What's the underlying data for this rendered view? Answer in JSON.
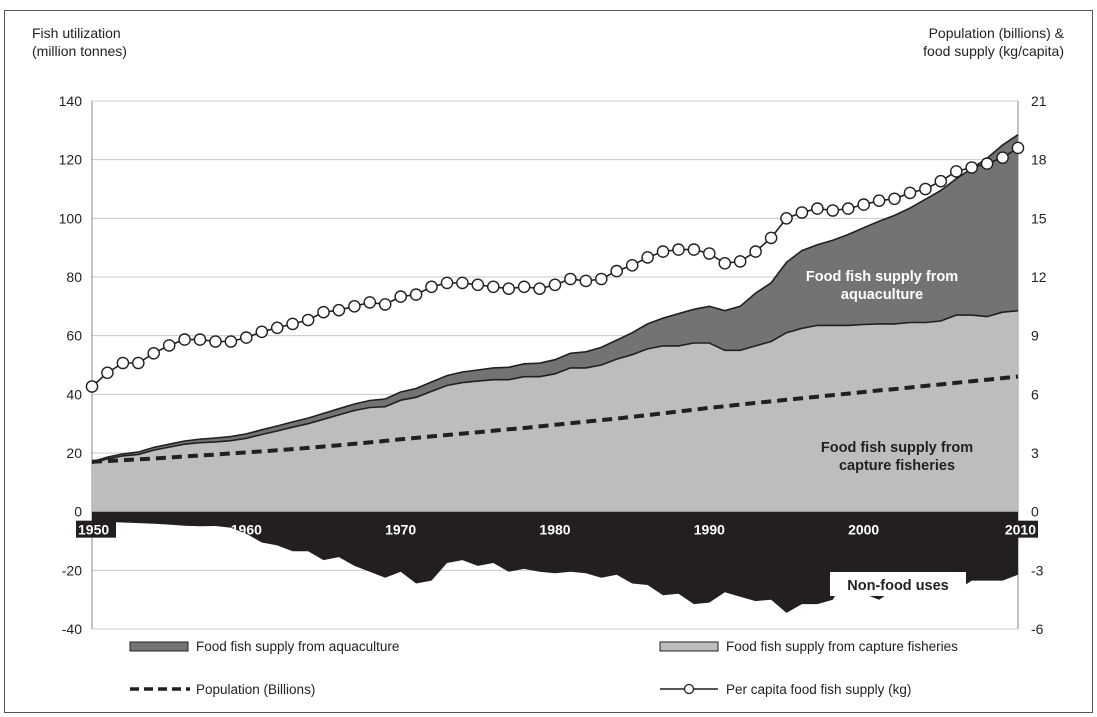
{
  "chart_data": {
    "type": "area",
    "left_axis_title": [
      "Fish utilization",
      "(million tonnes)"
    ],
    "right_axis_title": [
      "Population (billions) &",
      "food supply (kg/capita)"
    ],
    "left_ylim": [
      -40,
      140
    ],
    "left_ticks": [
      "140",
      "120",
      "100",
      "80",
      "60",
      "40",
      "20",
      "0",
      "-20",
      "-40"
    ],
    "right_ylim": [
      -6,
      21
    ],
    "right_ticks": [
      "21",
      "18",
      "15",
      "12",
      "9",
      "6",
      "3",
      "0",
      "-3",
      "-6"
    ],
    "xlim": [
      1950,
      2010
    ],
    "x_tick_labels": [
      "1950",
      "1960",
      "1970",
      "1980",
      "1990",
      "2000",
      "2010"
    ],
    "grid": "horizontal",
    "years": [
      1950,
      1951,
      1952,
      1953,
      1954,
      1955,
      1956,
      1957,
      1958,
      1959,
      1960,
      1961,
      1962,
      1963,
      1964,
      1965,
      1966,
      1967,
      1968,
      1969,
      1970,
      1971,
      1972,
      1973,
      1974,
      1975,
      1976,
      1977,
      1978,
      1979,
      1980,
      1981,
      1982,
      1983,
      1984,
      1985,
      1986,
      1987,
      1988,
      1989,
      1990,
      1991,
      1992,
      1993,
      1994,
      1995,
      1996,
      1997,
      1998,
      1999,
      2000,
      2001,
      2002,
      2003,
      2004,
      2005,
      2006,
      2007,
      2008,
      2009,
      2010
    ],
    "series": [
      {
        "name": "Food fish supply from capture fisheries",
        "axis": "left",
        "color": "#bdbdbd",
        "values": [
          16.5,
          18,
          19,
          19.5,
          21,
          22,
          23,
          23.5,
          23.8,
          24.2,
          25,
          26.3,
          27.5,
          28.8,
          30,
          31.5,
          33,
          34.5,
          35.5,
          35.8,
          38,
          39,
          41,
          43,
          44,
          44.5,
          45,
          45,
          46,
          46,
          47,
          49,
          49,
          50,
          52,
          53.5,
          55.5,
          56.5,
          56.5,
          57.5,
          57.5,
          55,
          55,
          56.5,
          58,
          61,
          62.5,
          63.5,
          63.5,
          63.5,
          63.8,
          64,
          64,
          64.5,
          64.5,
          65,
          67,
          67,
          66.5,
          68,
          68.5
        ]
      },
      {
        "name": "Food fish supply from aquaculture",
        "axis": "left",
        "color": "#737373",
        "values": [
          0.5,
          0.6,
          0.7,
          0.8,
          0.9,
          1,
          1.1,
          1.2,
          1.3,
          1.4,
          1.5,
          1.6,
          1.7,
          1.8,
          1.9,
          2,
          2.1,
          2.2,
          2.4,
          2.6,
          2.8,
          3,
          3.2,
          3.4,
          3.6,
          3.8,
          4,
          4.2,
          4.4,
          4.6,
          4.8,
          5,
          5.5,
          6,
          6.5,
          7.5,
          8.5,
          9.5,
          11,
          11.5,
          12.5,
          13.5,
          15,
          18,
          20,
          24,
          26.5,
          27.5,
          29,
          31,
          33,
          35,
          37,
          39,
          42,
          44.5,
          46.5,
          50,
          54,
          57,
          60
        ]
      },
      {
        "name": "Non-food uses",
        "axis": "left",
        "color": "#231f20",
        "values": [
          -3.5,
          -3.5,
          -3.7,
          -3.9,
          -4.1,
          -4.4,
          -4.8,
          -5,
          -4.9,
          -5.5,
          -7.5,
          -10.5,
          -11.5,
          -13.5,
          -13.5,
          -16.5,
          -15.5,
          -18.5,
          -20.5,
          -22.5,
          -20.5,
          -24.5,
          -23.5,
          -17.5,
          -16.5,
          -18.5,
          -17.5,
          -20.5,
          -19.5,
          -20.5,
          -21,
          -20.5,
          -21,
          -22.5,
          -21.5,
          -24.5,
          -25,
          -28.5,
          -28,
          -31.5,
          -31,
          -27.5,
          -29,
          -30.5,
          -30,
          -34.5,
          -31.5,
          -31.5,
          -30,
          -21,
          -28,
          -30,
          -26.5,
          -27.5,
          -24,
          -28,
          -27,
          -23.5,
          -23.5,
          -23.5,
          -21.5
        ]
      },
      {
        "name": "Population (Billions)",
        "axis": "right",
        "color": "#231f20",
        "values": [
          2.55,
          2.59,
          2.63,
          2.68,
          2.72,
          2.77,
          2.82,
          2.87,
          2.92,
          2.98,
          3.03,
          3.08,
          3.14,
          3.2,
          3.26,
          3.33,
          3.4,
          3.47,
          3.54,
          3.62,
          3.7,
          3.77,
          3.85,
          3.92,
          3.99,
          4.06,
          4.14,
          4.21,
          4.28,
          4.36,
          4.44,
          4.52,
          4.6,
          4.68,
          4.76,
          4.85,
          4.94,
          5.03,
          5.12,
          5.21,
          5.31,
          5.39,
          5.48,
          5.56,
          5.64,
          5.72,
          5.8,
          5.88,
          5.96,
          6.04,
          6.12,
          6.2,
          6.27,
          6.35,
          6.43,
          6.51,
          6.59,
          6.67,
          6.75,
          6.83,
          6.91
        ]
      },
      {
        "name": "Per capita food fish supply (kg)",
        "axis": "right",
        "color": "#231f20",
        "values": [
          6.4,
          7.1,
          7.6,
          7.6,
          8.1,
          8.5,
          8.8,
          8.8,
          8.7,
          8.7,
          8.9,
          9.2,
          9.4,
          9.6,
          9.8,
          10.2,
          10.3,
          10.5,
          10.7,
          10.6,
          11,
          11.1,
          11.5,
          11.7,
          11.7,
          11.6,
          11.5,
          11.4,
          11.5,
          11.4,
          11.6,
          11.9,
          11.8,
          11.9,
          12.3,
          12.6,
          13,
          13.3,
          13.4,
          13.4,
          13.2,
          12.7,
          12.8,
          13.3,
          14,
          15,
          15.3,
          15.5,
          15.4,
          15.5,
          15.7,
          15.9,
          16,
          16.3,
          16.5,
          16.9,
          17.4,
          17.6,
          17.8,
          18.1,
          18.6
        ]
      }
    ],
    "inner_labels": {
      "aquaculture": [
        "Food fish supply from",
        "aquaculture"
      ],
      "capture": [
        "Food fish supply from",
        "capture fisheries"
      ],
      "nonfood": "Non-food uses"
    },
    "legend": [
      "Food fish supply from aquaculture",
      "Food fish supply from capture fisheries",
      "Population (Billions)",
      "Per capita food fish supply (kg)"
    ]
  }
}
